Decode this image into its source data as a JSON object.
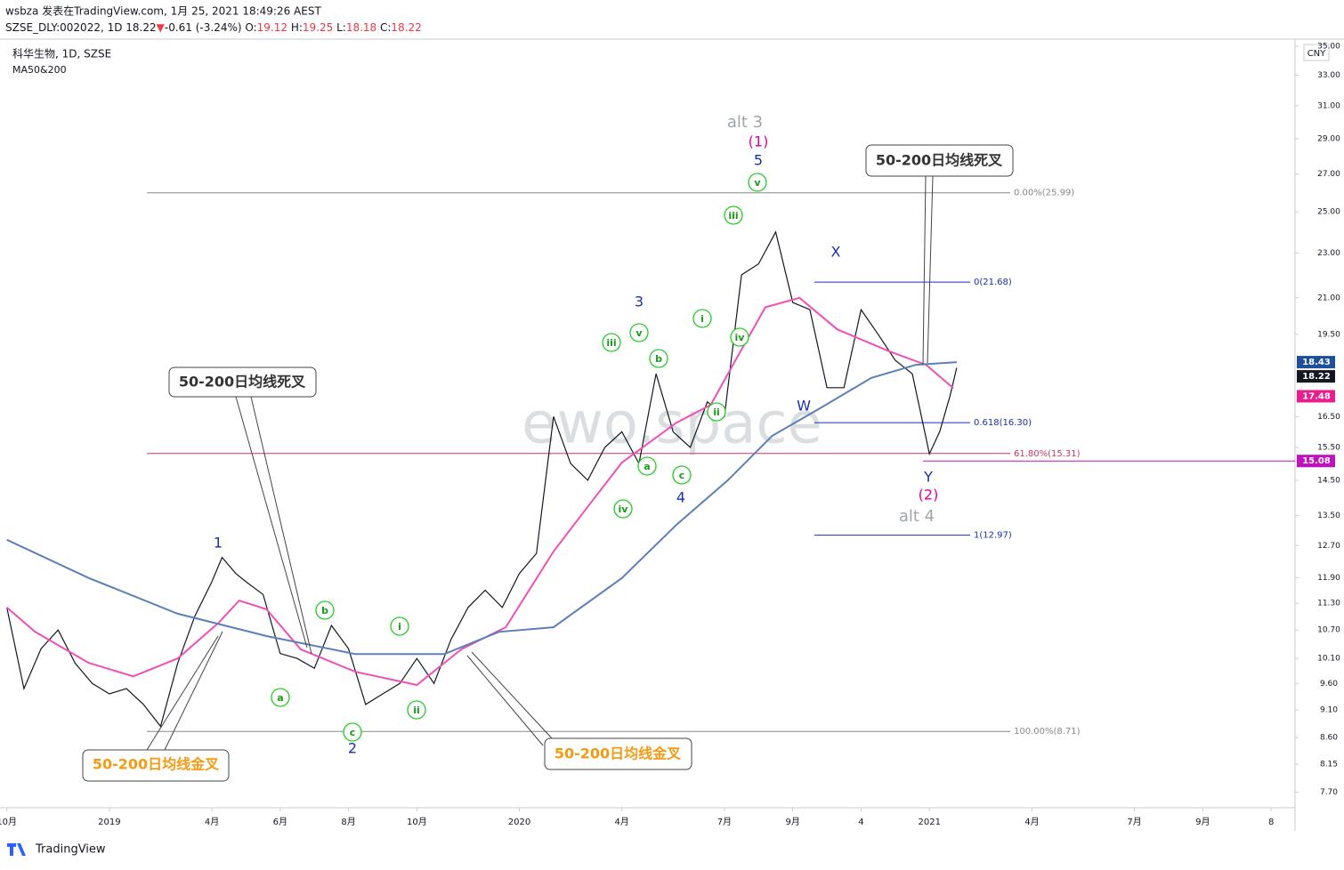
{
  "header": {
    "author_line": "wsbza 发表在TradingView.com, 1月 25, 2021 18:49:26 AEST",
    "quote": [
      {
        "text": "SZSE_DLY:002022, 1D 18.22",
        "color": "#131722"
      },
      {
        "text": "▼",
        "color": "#f23645"
      },
      {
        "text": "-0.61 (-3.24%) O:",
        "color": "#131722"
      },
      {
        "text": "19.12",
        "color": "#f23645"
      },
      {
        "text": " H:",
        "color": "#131722"
      },
      {
        "text": "19.25",
        "color": "#f23645"
      },
      {
        "text": " L:",
        "color": "#131722"
      },
      {
        "text": "18.18",
        "color": "#f23645"
      },
      {
        "text": " C:",
        "color": "#131722"
      },
      {
        "text": "18.22",
        "color": "#f23645"
      }
    ]
  },
  "chart_data": {
    "type": "line",
    "title": "科华生物, 1D, SZSE",
    "subtitle": "MA50&200",
    "currency": "CNY",
    "watermark": "ewo.space",
    "log_scale": true,
    "xlim": [
      -0.2,
      37.7
    ],
    "ylim": [
      7.46,
      35.5
    ],
    "xticks": [
      {
        "value": 0,
        "label": "10月"
      },
      {
        "value": 3,
        "label": "2019"
      },
      {
        "value": 6,
        "label": "4月"
      },
      {
        "value": 8,
        "label": "6月"
      },
      {
        "value": 10,
        "label": "8月"
      },
      {
        "value": 12,
        "label": "10月"
      },
      {
        "value": 15,
        "label": "2020"
      },
      {
        "value": 18,
        "label": "4月"
      },
      {
        "value": 21,
        "label": "7月"
      },
      {
        "value": 23,
        "label": "9月"
      },
      {
        "value": 25,
        "label": "4"
      },
      {
        "value": 27,
        "label": "2021"
      },
      {
        "value": 30,
        "label": "4月"
      },
      {
        "value": 33,
        "label": "7月"
      },
      {
        "value": 35,
        "label": "9月"
      },
      {
        "value": 37,
        "label": "8"
      }
    ],
    "yticks": [
      {
        "value": 7.7,
        "label": "7.70"
      },
      {
        "value": 8.15,
        "label": "8.15"
      },
      {
        "value": 8.6,
        "label": "8.60"
      },
      {
        "value": 9.1,
        "label": "9.10"
      },
      {
        "value": 9.6,
        "label": "9.60"
      },
      {
        "value": 10.1,
        "label": "10.10"
      },
      {
        "value": 10.7,
        "label": "10.70"
      },
      {
        "value": 11.3,
        "label": "11.30"
      },
      {
        "value": 11.9,
        "label": "11.90"
      },
      {
        "value": 12.7,
        "label": "12.70"
      },
      {
        "value": 13.5,
        "label": "13.50"
      },
      {
        "value": 14.5,
        "label": "14.50"
      },
      {
        "value": 15.5,
        "label": "15.50"
      },
      {
        "value": 16.5,
        "label": "16.50"
      },
      {
        "value": 19.5,
        "label": "19.50"
      },
      {
        "value": 21,
        "label": "21.00"
      },
      {
        "value": 23,
        "label": "23.00"
      },
      {
        "value": 25,
        "label": "25.00"
      },
      {
        "value": 27,
        "label": "27.00"
      },
      {
        "value": 29,
        "label": "29.00"
      },
      {
        "value": 31,
        "label": "31.00"
      },
      {
        "value": 33,
        "label": "33.00"
      },
      {
        "value": 35,
        "label": "35.00"
      }
    ],
    "series": [
      {
        "color": "#131722",
        "x": [
          0,
          0.5,
          1,
          1.5,
          2,
          2.5,
          3,
          3.5,
          4,
          4.5,
          5,
          5.5,
          6,
          6.3,
          6.7,
          7,
          7.5,
          8,
          8.5,
          9,
          9.5,
          10,
          10.5,
          11,
          11.5,
          12,
          12.5,
          13,
          13.5,
          14,
          14.5,
          15,
          15.5,
          16,
          16.5,
          17,
          17.5,
          18,
          18.5,
          19,
          19.5,
          20,
          20.5,
          21,
          21.5,
          22,
          22.5,
          23,
          23.5,
          24,
          24.5,
          25,
          25.5,
          26,
          26.5,
          27,
          27.3,
          27.6,
          27.8
        ],
        "values": [
          11.2,
          9.5,
          10.3,
          10.7,
          10.0,
          9.6,
          9.4,
          9.5,
          9.2,
          8.8,
          10.0,
          11.0,
          11.8,
          12.4,
          12.0,
          11.8,
          11.5,
          10.2,
          10.1,
          9.9,
          10.8,
          10.3,
          9.2,
          9.4,
          9.6,
          10.1,
          9.6,
          10.5,
          11.2,
          11.6,
          11.2,
          12.0,
          12.5,
          16.5,
          15.0,
          14.5,
          15.5,
          16.0,
          15.0,
          18.0,
          16.0,
          15.5,
          17.0,
          16.5,
          22.0,
          22.5,
          24.0,
          20.8,
          20.5,
          17.5,
          17.5,
          20.5,
          19.5,
          18.5,
          18.0,
          15.3,
          16.0,
          17.2,
          18.22
        ]
      },
      {
        "color": "#f050b4",
        "x": [
          0,
          0.83,
          2.4,
          3.7,
          5,
          6.2,
          6.8,
          7.6,
          8.6,
          10.2,
          12,
          13.3,
          14.6,
          16,
          17,
          18,
          19.6,
          20.6,
          21.4,
          22.2,
          23.2,
          24.3,
          25.8,
          26.9,
          27.7
        ],
        "values": [
          11.2,
          10.66,
          10.01,
          9.74,
          10.1,
          10.86,
          11.36,
          11.16,
          10.29,
          9.83,
          9.57,
          10.29,
          10.76,
          12.55,
          13.74,
          15.03,
          16.3,
          16.9,
          18.67,
          20.6,
          21.0,
          19.7,
          18.85,
          18.33,
          17.48
        ]
      },
      {
        "color": "#5b7fb9",
        "x": [
          0,
          2.4,
          5,
          7.6,
          10.2,
          12.8,
          14.4,
          16,
          18,
          19.6,
          21.1,
          22.4,
          23.75,
          25.3,
          26.6,
          27.8
        ],
        "values": [
          12.85,
          11.89,
          11.06,
          10.57,
          10.19,
          10.19,
          10.66,
          10.76,
          11.89,
          13.25,
          14.5,
          15.87,
          16.75,
          17.85,
          18.33,
          18.43
        ]
      }
    ],
    "fib_levels": [
      {
        "value": 25.99,
        "label": "0.00%(25.99)",
        "color": "#888888"
      },
      {
        "value": 15.31,
        "label": "61.80%(15.31)",
        "color": "#d0306e"
      },
      {
        "value": 8.71,
        "label": "100.00%(8.71)",
        "color": "#888888"
      },
      {
        "value": 21.68,
        "label": "0(21.68)",
        "color": "#1a2fb0"
      },
      {
        "value": 16.3,
        "label": "0.618(16.30)",
        "color": "#1a2fb0"
      },
      {
        "value": 12.97,
        "label": "1(12.97)",
        "color": "#1a2fb0"
      }
    ],
    "hline": {
      "value": 15.08,
      "color": "#c010c0"
    },
    "price_badges": [
      {
        "value": 18.43,
        "label": "18.43",
        "color": "#1e4f9c"
      },
      {
        "value": 18.22,
        "label": "18.22",
        "color": "#131722"
      },
      {
        "value": 17.48,
        "label": "17.48",
        "color": "#e91e8c"
      },
      {
        "value": 15.08,
        "label": "15.08",
        "color": "#c010c0"
      }
    ],
    "annotations": [
      "1",
      "2",
      "3",
      "4",
      "5",
      "W",
      "X",
      "Y",
      "(1)",
      "(2)",
      "alt 3",
      "alt 4",
      "a",
      "b",
      "c",
      "i",
      "ii",
      "iii",
      "iv",
      "v",
      "a",
      "b",
      "c",
      "i",
      "ii",
      "iii",
      "iv",
      "v"
    ],
    "callouts": [
      "50-200日均线死叉",
      "50-200日均线金叉",
      "50-200日均线金叉",
      "50-200日均线死叉"
    ]
  },
  "footer": "TradingView"
}
